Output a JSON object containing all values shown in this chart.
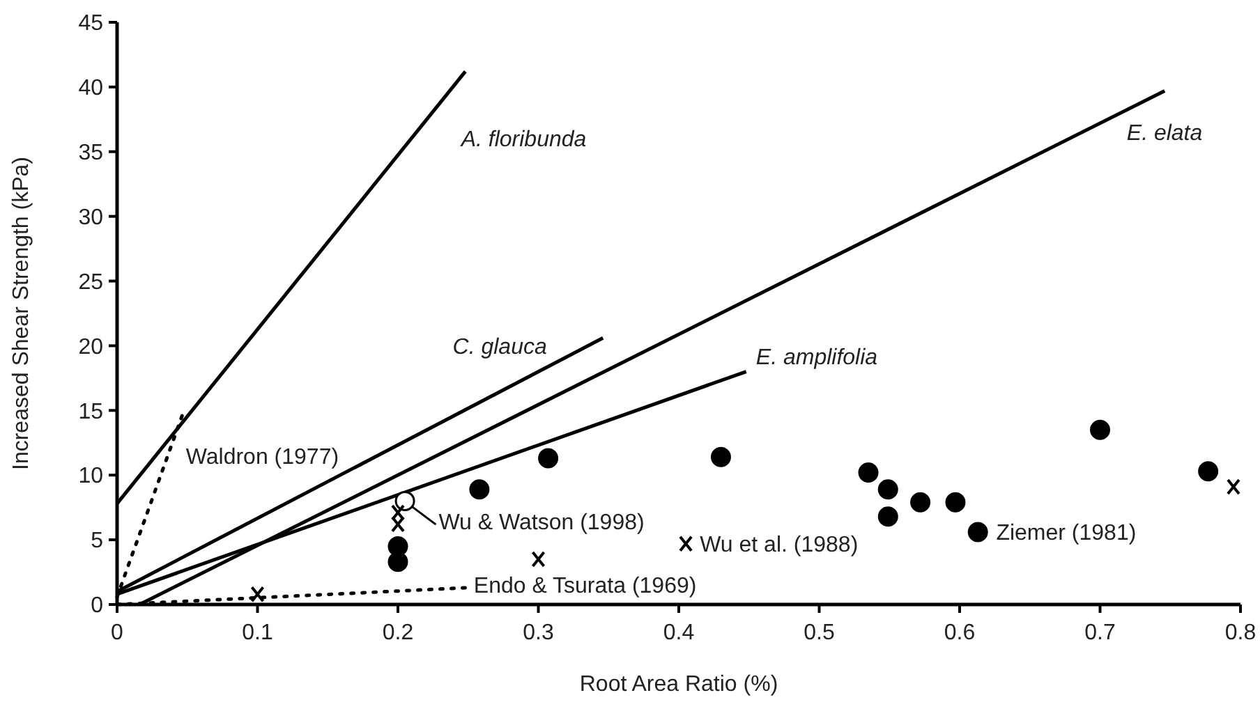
{
  "chart_data": {
    "type": "line",
    "xlabel": "Root Area Ratio (%)",
    "ylabel": "Increased Shear Strength (kPa)",
    "xlim": [
      0,
      0.8
    ],
    "ylim": [
      0,
      45
    ],
    "xticks": [
      0,
      0.1,
      0.2,
      0.3,
      0.4,
      0.5,
      0.6,
      0.7,
      0.8
    ],
    "yticks": [
      0,
      5,
      10,
      15,
      20,
      25,
      30,
      35,
      40,
      45
    ],
    "grid": false,
    "series": [
      {
        "color": "#000000",
        "x": [
          0,
          0.248
        ],
        "values": [
          7.8,
          41.2
        ],
        "line_style": "solid"
      },
      {
        "color": "#000000",
        "x": [
          0,
          0.346
        ],
        "values": [
          1,
          20.6
        ],
        "line_style": "solid"
      },
      {
        "color": "#000000",
        "x": [
          0.016,
          0.746
        ],
        "values": [
          0,
          39.7
        ],
        "line_style": "solid"
      },
      {
        "color": "#000000",
        "x": [
          0,
          0.448
        ],
        "values": [
          0.8,
          18.0
        ],
        "line_style": "solid"
      },
      {
        "color": "#000000",
        "x": [
          0,
          0.047
        ],
        "values": [
          0.6,
          14.8
        ],
        "line_style": "dotted"
      },
      {
        "color": "#000000",
        "x": [
          0,
          0.25
        ],
        "values": [
          0,
          1.3
        ],
        "line_style": "dotted"
      },
      {
        "type": "scatter",
        "color": "#000000",
        "marker": "circle",
        "x": [
          0.2,
          0.2,
          0.258,
          0.307,
          0.43,
          0.535,
          0.549,
          0.549,
          0.572,
          0.597,
          0.613,
          0.7,
          0.777
        ],
        "values": [
          4.5,
          3.3,
          8.9,
          11.3,
          11.4,
          10.2,
          8.9,
          6.8,
          7.9,
          7.9,
          5.6,
          13.5,
          10.3
        ]
      },
      {
        "type": "scatter",
        "color": "#ffffff",
        "marker": "circle",
        "x": [
          0.205
        ],
        "values": [
          8.0
        ]
      },
      {
        "type": "scatter",
        "color": "#000000",
        "marker": "cross",
        "x": [
          0.1,
          0.2,
          0.2,
          0.3,
          0.405,
          0.795
        ],
        "values": [
          0.8,
          7.1,
          6.2,
          3.5,
          4.7,
          9.1
        ]
      }
    ],
    "annotations": [
      "A. floribunda",
      "C. glauca",
      "E. elata",
      "E. amplifolia",
      "Waldron (1977)",
      "Wu & Watson (1998)",
      "Endo & Tsurata (1969)",
      "Wu et al. (1988)",
      "Ziemer (1981)"
    ]
  }
}
